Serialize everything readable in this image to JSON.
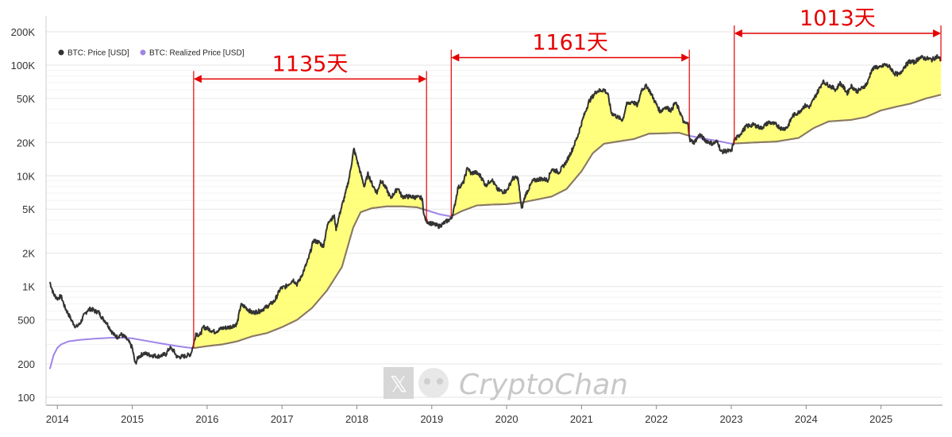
{
  "chart_data": {
    "type": "line",
    "y_scale": "log",
    "ylim": [
      100,
      200000
    ],
    "grid": "horizontal",
    "legend_position": "top-left",
    "y_ticks": [
      {
        "value": 100,
        "label": "100"
      },
      {
        "value": 200,
        "label": "200"
      },
      {
        "value": 500,
        "label": "500"
      },
      {
        "value": 1000,
        "label": "1K"
      },
      {
        "value": 2000,
        "label": "2K"
      },
      {
        "value": 5000,
        "label": "5K"
      },
      {
        "value": 10000,
        "label": "10K"
      },
      {
        "value": 20000,
        "label": "20K"
      },
      {
        "value": 50000,
        "label": "50K"
      },
      {
        "value": 100000,
        "label": "100K"
      },
      {
        "value": 200000,
        "label": "200K"
      }
    ],
    "x_ticks": [
      "2014",
      "2015",
      "2016",
      "2017",
      "2018",
      "2019",
      "2020",
      "2021",
      "2022",
      "2023",
      "2024",
      "2025"
    ],
    "fill_between": {
      "upper": "BTC: Price [USD]",
      "lower": "BTC: Realized Price [USD]",
      "color": "#ffff66",
      "ranges": [
        [
          2015.82,
          2018.93
        ],
        [
          2019.26,
          2022.44
        ],
        [
          2023.04,
          2025.8
        ]
      ]
    },
    "series": [
      {
        "name": "BTC: Price [USD]",
        "color": "#333333",
        "points": [
          [
            2013.9,
            1100
          ],
          [
            2013.95,
            850
          ],
          [
            2014.0,
            780
          ],
          [
            2014.05,
            820
          ],
          [
            2014.1,
            650
          ],
          [
            2014.15,
            560
          ],
          [
            2014.2,
            480
          ],
          [
            2014.25,
            430
          ],
          [
            2014.3,
            460
          ],
          [
            2014.35,
            540
          ],
          [
            2014.4,
            610
          ],
          [
            2014.45,
            630
          ],
          [
            2014.5,
            600
          ],
          [
            2014.55,
            590
          ],
          [
            2014.6,
            520
          ],
          [
            2014.65,
            480
          ],
          [
            2014.7,
            420
          ],
          [
            2014.75,
            370
          ],
          [
            2014.8,
            350
          ],
          [
            2014.85,
            370
          ],
          [
            2014.9,
            350
          ],
          [
            2014.95,
            320
          ],
          [
            2015.0,
            280
          ],
          [
            2015.04,
            200
          ],
          [
            2015.08,
            230
          ],
          [
            2015.15,
            250
          ],
          [
            2015.25,
            240
          ],
          [
            2015.35,
            235
          ],
          [
            2015.45,
            245
          ],
          [
            2015.5,
            280
          ],
          [
            2015.55,
            265
          ],
          [
            2015.6,
            230
          ],
          [
            2015.7,
            235
          ],
          [
            2015.78,
            245
          ],
          [
            2015.82,
            300
          ],
          [
            2015.85,
            380
          ],
          [
            2015.9,
            360
          ],
          [
            2015.95,
            430
          ],
          [
            2016.0,
            420
          ],
          [
            2016.1,
            390
          ],
          [
            2016.2,
            420
          ],
          [
            2016.3,
            430
          ],
          [
            2016.4,
            460
          ],
          [
            2016.45,
            680
          ],
          [
            2016.5,
            660
          ],
          [
            2016.6,
            580
          ],
          [
            2016.7,
            600
          ],
          [
            2016.8,
            660
          ],
          [
            2016.9,
            740
          ],
          [
            2016.98,
            960
          ],
          [
            2017.05,
            1000
          ],
          [
            2017.15,
            1150
          ],
          [
            2017.2,
            1050
          ],
          [
            2017.25,
            1200
          ],
          [
            2017.35,
            1750
          ],
          [
            2017.42,
            2600
          ],
          [
            2017.5,
            2500
          ],
          [
            2017.55,
            2300
          ],
          [
            2017.62,
            3900
          ],
          [
            2017.7,
            4300
          ],
          [
            2017.72,
            3300
          ],
          [
            2017.78,
            4800
          ],
          [
            2017.85,
            7000
          ],
          [
            2017.9,
            9800
          ],
          [
            2017.96,
            17500
          ],
          [
            2018.0,
            14000
          ],
          [
            2018.05,
            10500
          ],
          [
            2018.1,
            8000
          ],
          [
            2018.15,
            10500
          ],
          [
            2018.2,
            8500
          ],
          [
            2018.27,
            7000
          ],
          [
            2018.32,
            9200
          ],
          [
            2018.4,
            7500
          ],
          [
            2018.45,
            6300
          ],
          [
            2018.55,
            7800
          ],
          [
            2018.6,
            6500
          ],
          [
            2018.7,
            6500
          ],
          [
            2018.8,
            6400
          ],
          [
            2018.87,
            6300
          ],
          [
            2018.9,
            4300
          ],
          [
            2018.93,
            3900
          ],
          [
            2019.0,
            3700
          ],
          [
            2019.1,
            3500
          ],
          [
            2019.2,
            3900
          ],
          [
            2019.26,
            4100
          ],
          [
            2019.3,
            5100
          ],
          [
            2019.35,
            7800
          ],
          [
            2019.42,
            8600
          ],
          [
            2019.48,
            12000
          ],
          [
            2019.52,
            10500
          ],
          [
            2019.58,
            10800
          ],
          [
            2019.65,
            10000
          ],
          [
            2019.72,
            8200
          ],
          [
            2019.8,
            9300
          ],
          [
            2019.88,
            7500
          ],
          [
            2019.95,
            7200
          ],
          [
            2020.0,
            7300
          ],
          [
            2020.08,
            9500
          ],
          [
            2020.15,
            9600
          ],
          [
            2020.2,
            5000
          ],
          [
            2020.25,
            6700
          ],
          [
            2020.35,
            9000
          ],
          [
            2020.45,
            9400
          ],
          [
            2020.55,
            9200
          ],
          [
            2020.6,
            11500
          ],
          [
            2020.7,
            10800
          ],
          [
            2020.8,
            13500
          ],
          [
            2020.88,
            17500
          ],
          [
            2020.95,
            23000
          ],
          [
            2021.02,
            33000
          ],
          [
            2021.1,
            47000
          ],
          [
            2021.2,
            58000
          ],
          [
            2021.3,
            60000
          ],
          [
            2021.35,
            55000
          ],
          [
            2021.4,
            37000
          ],
          [
            2021.48,
            34000
          ],
          [
            2021.55,
            32000
          ],
          [
            2021.6,
            44000
          ],
          [
            2021.68,
            47000
          ],
          [
            2021.75,
            43000
          ],
          [
            2021.8,
            60000
          ],
          [
            2021.87,
            65000
          ],
          [
            2021.92,
            57000
          ],
          [
            2021.98,
            47000
          ],
          [
            2022.05,
            38000
          ],
          [
            2022.12,
            42000
          ],
          [
            2022.2,
            39000
          ],
          [
            2022.25,
            46000
          ],
          [
            2022.3,
            40000
          ],
          [
            2022.37,
            30000
          ],
          [
            2022.42,
            29500
          ],
          [
            2022.45,
            21000
          ],
          [
            2022.5,
            20000
          ],
          [
            2022.58,
            23500
          ],
          [
            2022.65,
            21000
          ],
          [
            2022.75,
            19500
          ],
          [
            2022.82,
            20500
          ],
          [
            2022.86,
            16500
          ],
          [
            2022.95,
            16800
          ],
          [
            2023.0,
            16600
          ],
          [
            2023.04,
            21000
          ],
          [
            2023.1,
            23000
          ],
          [
            2023.2,
            28000
          ],
          [
            2023.3,
            29000
          ],
          [
            2023.4,
            27000
          ],
          [
            2023.5,
            30500
          ],
          [
            2023.6,
            29000
          ],
          [
            2023.68,
            26500
          ],
          [
            2023.75,
            27500
          ],
          [
            2023.82,
            35000
          ],
          [
            2023.9,
            37500
          ],
          [
            2023.98,
            43000
          ],
          [
            2024.05,
            42000
          ],
          [
            2024.12,
            52000
          ],
          [
            2024.18,
            62000
          ],
          [
            2024.22,
            71000
          ],
          [
            2024.3,
            66000
          ],
          [
            2024.4,
            60000
          ],
          [
            2024.45,
            69000
          ],
          [
            2024.5,
            63000
          ],
          [
            2024.55,
            56000
          ],
          [
            2024.6,
            65000
          ],
          [
            2024.68,
            58000
          ],
          [
            2024.75,
            62000
          ],
          [
            2024.82,
            69000
          ],
          [
            2024.87,
            89000
          ],
          [
            2024.93,
            97000
          ],
          [
            2024.98,
            94000
          ],
          [
            2025.05,
            101000
          ],
          [
            2025.12,
            96000
          ],
          [
            2025.18,
            84000
          ],
          [
            2025.25,
            82000
          ],
          [
            2025.3,
            95000
          ],
          [
            2025.38,
            108000
          ],
          [
            2025.45,
            106000
          ],
          [
            2025.52,
            118000
          ],
          [
            2025.6,
            115000
          ],
          [
            2025.68,
            112000
          ],
          [
            2025.75,
            120000
          ],
          [
            2025.8,
            111000
          ]
        ]
      },
      {
        "name": "BTC: Realized Price [USD]",
        "color": "#a084e8",
        "points": [
          [
            2013.9,
            180
          ],
          [
            2013.95,
            240
          ],
          [
            2014.0,
            280
          ],
          [
            2014.05,
            300
          ],
          [
            2014.15,
            320
          ],
          [
            2014.3,
            330
          ],
          [
            2014.5,
            338
          ],
          [
            2014.7,
            345
          ],
          [
            2014.9,
            345
          ],
          [
            2015.0,
            340
          ],
          [
            2015.2,
            322
          ],
          [
            2015.4,
            305
          ],
          [
            2015.6,
            290
          ],
          [
            2015.8,
            278
          ],
          [
            2015.85,
            280
          ],
          [
            2016.0,
            290
          ],
          [
            2016.2,
            300
          ],
          [
            2016.4,
            320
          ],
          [
            2016.6,
            355
          ],
          [
            2016.8,
            380
          ],
          [
            2017.0,
            430
          ],
          [
            2017.2,
            500
          ],
          [
            2017.4,
            640
          ],
          [
            2017.6,
            920
          ],
          [
            2017.8,
            1500
          ],
          [
            2017.95,
            3400
          ],
          [
            2018.05,
            4700
          ],
          [
            2018.2,
            5100
          ],
          [
            2018.4,
            5300
          ],
          [
            2018.6,
            5300
          ],
          [
            2018.8,
            5200
          ],
          [
            2018.93,
            4900
          ],
          [
            2019.1,
            4500
          ],
          [
            2019.26,
            4300
          ],
          [
            2019.4,
            4800
          ],
          [
            2019.6,
            5400
          ],
          [
            2019.8,
            5500
          ],
          [
            2020.0,
            5550
          ],
          [
            2020.2,
            5750
          ],
          [
            2020.4,
            6100
          ],
          [
            2020.6,
            6500
          ],
          [
            2020.8,
            7600
          ],
          [
            2021.0,
            11000
          ],
          [
            2021.15,
            16000
          ],
          [
            2021.3,
            19500
          ],
          [
            2021.5,
            20500
          ],
          [
            2021.7,
            21500
          ],
          [
            2021.9,
            24000
          ],
          [
            2022.1,
            24200
          ],
          [
            2022.3,
            24500
          ],
          [
            2022.44,
            23000
          ],
          [
            2022.6,
            21900
          ],
          [
            2022.8,
            20800
          ],
          [
            2023.0,
            19500
          ],
          [
            2023.04,
            19600
          ],
          [
            2023.3,
            20000
          ],
          [
            2023.6,
            20400
          ],
          [
            2023.9,
            22000
          ],
          [
            2024.1,
            27000
          ],
          [
            2024.3,
            31000
          ],
          [
            2024.6,
            32000
          ],
          [
            2024.8,
            34000
          ],
          [
            2025.0,
            39000
          ],
          [
            2025.2,
            42000
          ],
          [
            2025.4,
            45000
          ],
          [
            2025.6,
            50000
          ],
          [
            2025.8,
            54000
          ]
        ]
      }
    ],
    "annotations": [
      {
        "label": "1135天",
        "x_start": 2015.82,
        "x_end": 2018.93,
        "y": 75000
      },
      {
        "label": "1161天",
        "x_start": 2019.26,
        "x_end": 2022.44,
        "y": 117000
      },
      {
        "label": "1013天",
        "x_start": 2023.04,
        "x_end": 2025.8,
        "y": 200000
      }
    ]
  },
  "watermark": "CryptoChan"
}
